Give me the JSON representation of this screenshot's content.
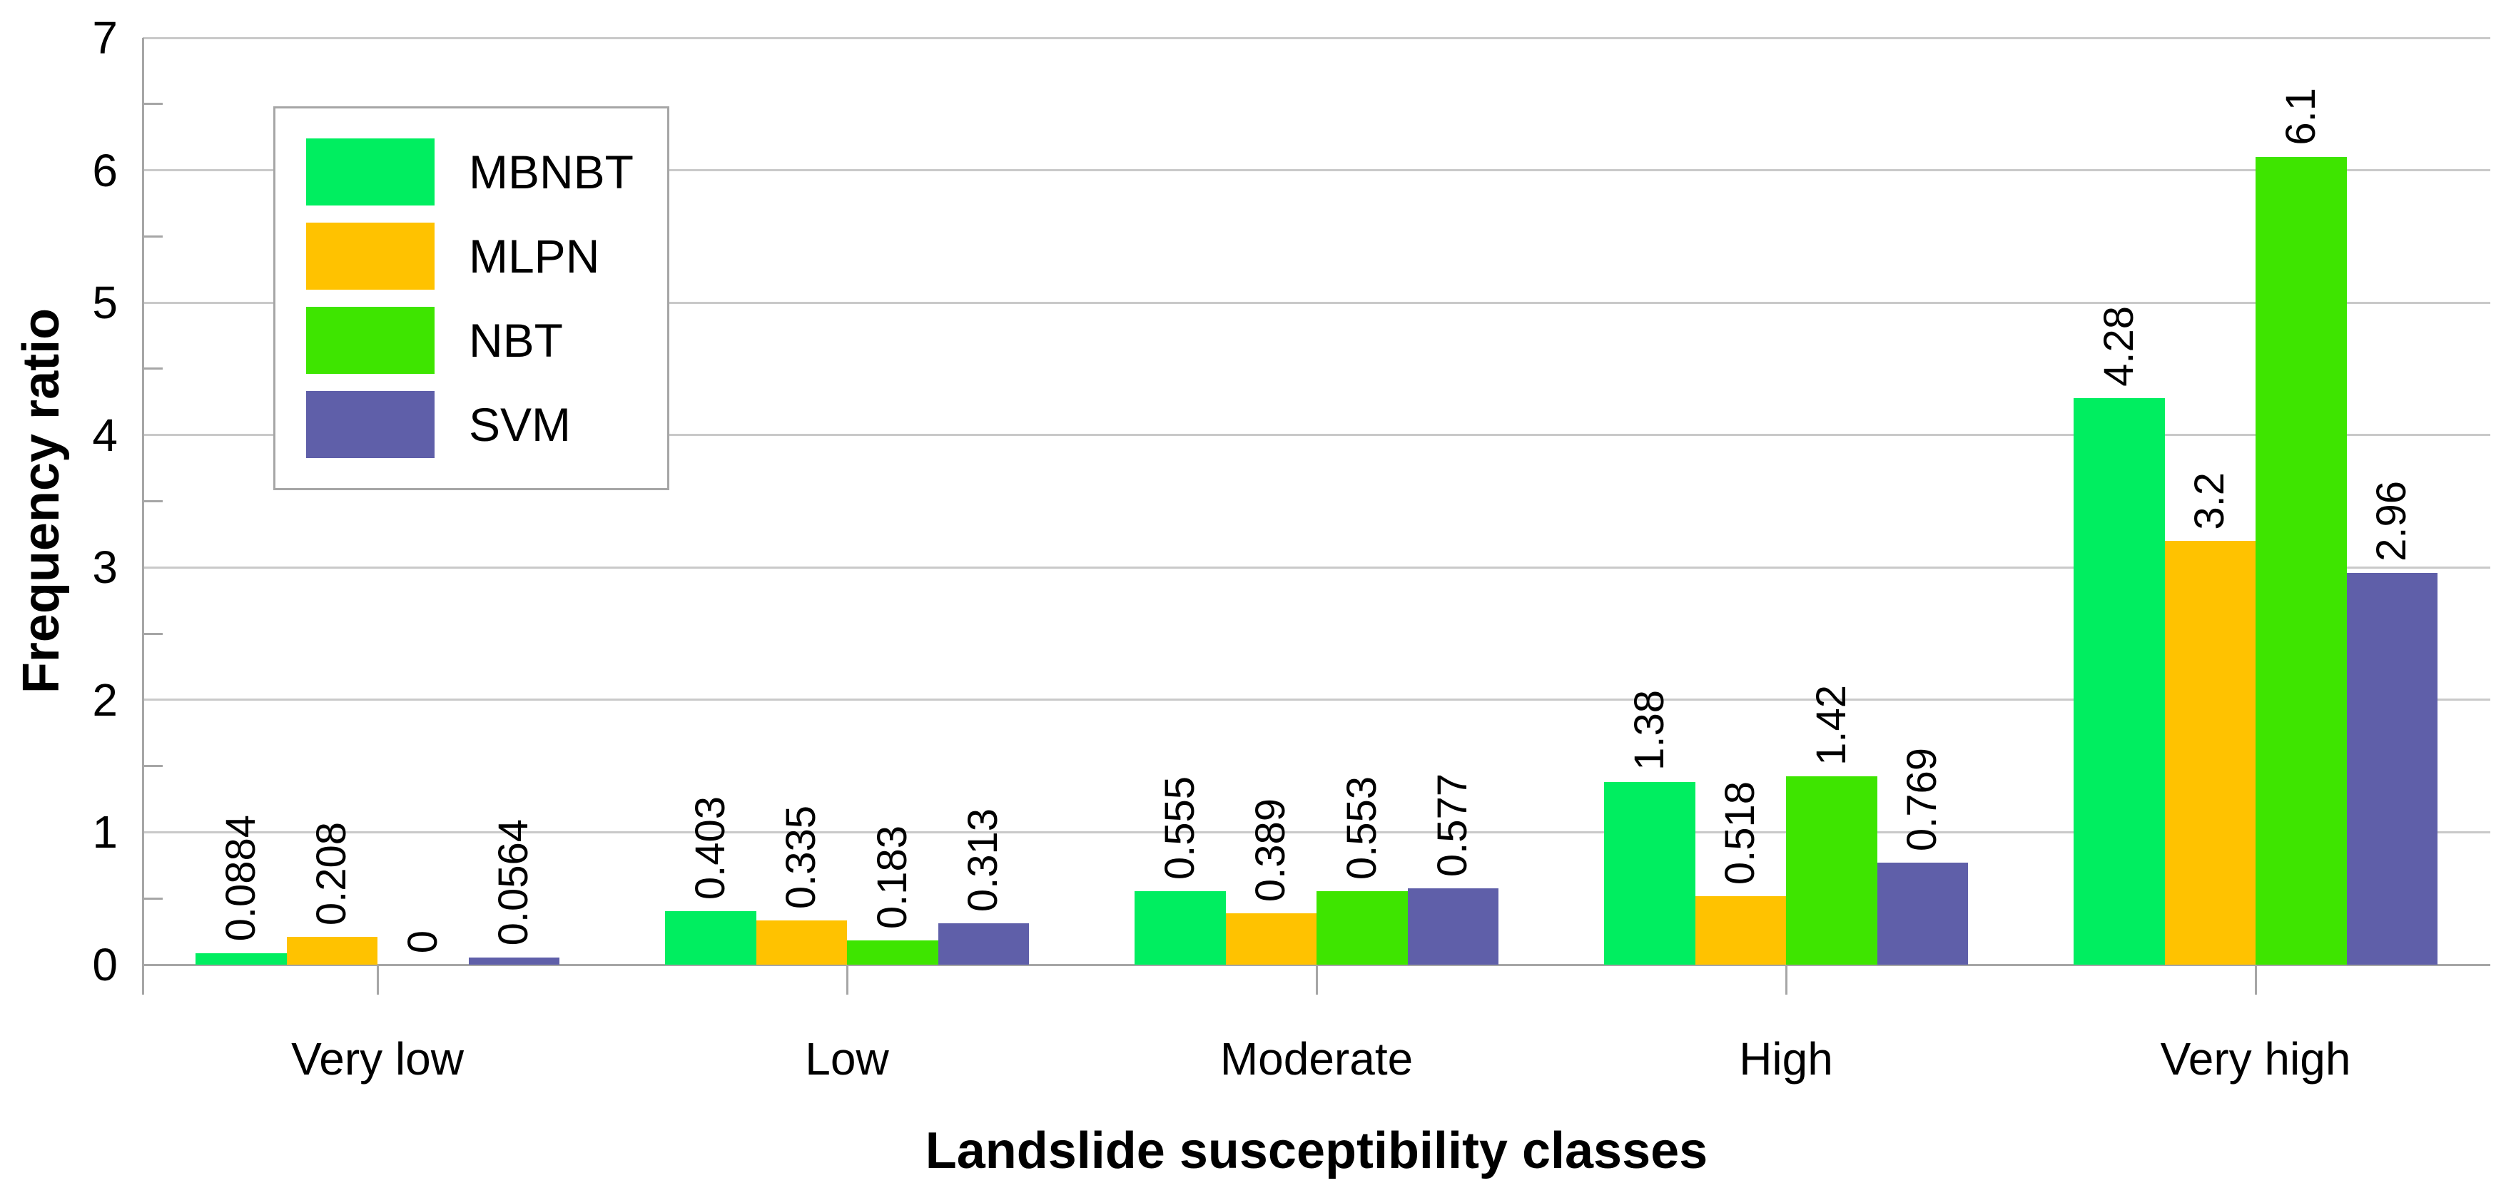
{
  "chart_data": {
    "type": "bar",
    "title": "",
    "xlabel": "Landslide susceptibility classes",
    "ylabel": "Frequency ratio",
    "categories": [
      "Very low",
      "Low",
      "Moderate",
      "High",
      "Very high"
    ],
    "series": [
      {
        "name": "MBNBT",
        "color": "#00EE60",
        "values": [
          0.0884,
          0.403,
          0.555,
          1.38,
          4.28
        ],
        "value_labels": [
          "0.0884",
          "0.403",
          "0.555",
          "1.38",
          "4.28"
        ]
      },
      {
        "name": "MLPN",
        "color": "#FFC200",
        "values": [
          0.208,
          0.335,
          0.389,
          0.518,
          3.2
        ],
        "value_labels": [
          "0.208",
          "0.335",
          "0.389",
          "0.518",
          "3.2"
        ]
      },
      {
        "name": "NBT",
        "color": "#3EE500",
        "values": [
          0,
          0.183,
          0.553,
          1.42,
          6.1
        ],
        "value_labels": [
          "0",
          "0.183",
          "0.553",
          "1.42",
          "6.1"
        ]
      },
      {
        "name": "SVM",
        "color": "#5F5FA9",
        "values": [
          0.0564,
          0.313,
          0.577,
          0.769,
          2.96
        ],
        "value_labels": [
          "0.0564",
          "0.313",
          "0.577",
          "0.769",
          "2.96"
        ]
      }
    ],
    "ylim": [
      0,
      7
    ],
    "yticks": [
      "0",
      "1",
      "2",
      "3",
      "4",
      "5",
      "6",
      "7"
    ],
    "ytick_step": 1,
    "minor_tick_step": 0.5,
    "grid": true,
    "legend_position": "upper-left-inside"
  },
  "colors": {
    "gridline": "#C9C9C9",
    "axis": "#A6A6A6",
    "text": "#000000",
    "legend_border": "#A6A6A6",
    "background": "#FFFFFF"
  }
}
